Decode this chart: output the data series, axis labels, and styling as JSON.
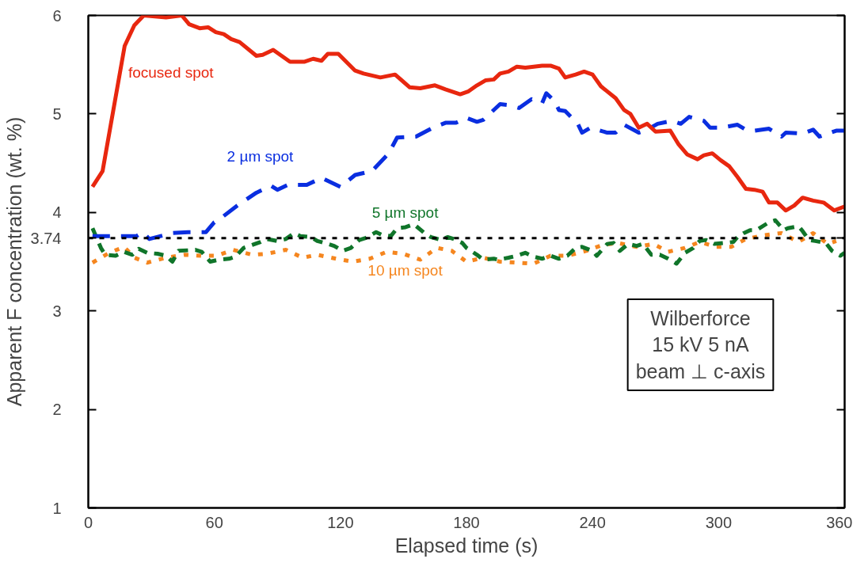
{
  "chart_data": {
    "type": "line",
    "xlabel": "Elapsed time (s)",
    "ylabel": "Apparent F concentration (wt. %)",
    "xlim": [
      0,
      360
    ],
    "ylim": [
      1,
      6
    ],
    "xticks": [
      0,
      60,
      120,
      180,
      240,
      300,
      360
    ],
    "yticks": [
      1,
      2,
      3,
      4,
      5,
      6
    ],
    "grid": false,
    "ref_lines": [
      {
        "axis": "y",
        "value": 3.74,
        "label": "3.74",
        "color": "#000000",
        "line_style": "dotted"
      }
    ],
    "annotations": [
      "Wilberforce\n15 kV 5 nA\nbeam ⊥ c-axis"
    ],
    "series": [
      {
        "name": "focused spot",
        "color": "#e8270f",
        "line_style": "solid",
        "x": [
          2,
          6.8,
          17.3,
          21.9,
          26.4,
          37,
          44.5,
          48,
          53,
          57,
          60.7,
          64.5,
          68,
          72,
          80,
          83,
          88,
          96,
          103,
          107,
          111,
          114,
          119,
          127,
          131,
          139,
          146,
          153,
          158,
          165,
          170,
          177,
          181,
          185,
          189,
          193,
          196,
          200,
          204,
          208,
          212,
          216,
          220,
          224,
          227,
          232,
          236,
          240,
          244,
          251,
          255,
          258,
          262,
          266,
          270,
          277,
          281,
          285,
          290,
          293,
          297,
          301,
          305,
          309,
          313,
          317,
          321,
          324,
          328,
          332,
          336,
          340,
          345,
          350,
          355,
          360
        ],
        "values": [
          4.26,
          4.42,
          5.69,
          5.9,
          6.0,
          5.98,
          6.0,
          5.91,
          5.87,
          5.88,
          5.83,
          5.81,
          5.76,
          5.73,
          5.59,
          5.6,
          5.65,
          5.53,
          5.53,
          5.56,
          5.54,
          5.61,
          5.61,
          5.44,
          5.41,
          5.37,
          5.4,
          5.27,
          5.26,
          5.29,
          5.25,
          5.2,
          5.23,
          5.29,
          5.34,
          5.35,
          5.41,
          5.43,
          5.48,
          5.47,
          5.48,
          5.49,
          5.49,
          5.46,
          5.37,
          5.4,
          5.43,
          5.4,
          5.28,
          5.16,
          5.04,
          5.0,
          4.86,
          4.9,
          4.82,
          4.83,
          4.69,
          4.59,
          4.54,
          4.58,
          4.6,
          4.53,
          4.47,
          4.36,
          4.24,
          4.23,
          4.21,
          4.1,
          4.1,
          4.02,
          4.07,
          4.15,
          4.12,
          4.1,
          4.02,
          4.06
        ]
      },
      {
        "name": "2 µm spot",
        "color": "#0a2ee0",
        "line_style": "dashed",
        "x": [
          2,
          8,
          15,
          23,
          26,
          29,
          40,
          47.5,
          56,
          60,
          63,
          71,
          80,
          87,
          90,
          95,
          104,
          111,
          120,
          127,
          135,
          143,
          147,
          156,
          164,
          170,
          175,
          180,
          185,
          188,
          196,
          200,
          205,
          211,
          216,
          218,
          222,
          224,
          227,
          233,
          235,
          239,
          247,
          251,
          255,
          262,
          266,
          271,
          278,
          282,
          286,
          293,
          296,
          301,
          309,
          313,
          317,
          324,
          330,
          332,
          340,
          345,
          348,
          356,
          360
        ],
        "values": [
          3.76,
          3.76,
          3.76,
          3.76,
          3.8,
          3.73,
          3.79,
          3.8,
          3.8,
          3.9,
          3.94,
          4.07,
          4.2,
          4.27,
          4.23,
          4.28,
          4.28,
          4.35,
          4.26,
          4.38,
          4.42,
          4.6,
          4.76,
          4.77,
          4.86,
          4.91,
          4.91,
          4.96,
          4.92,
          4.94,
          5.1,
          5.09,
          5.06,
          5.15,
          5.11,
          5.21,
          5.13,
          5.04,
          5.03,
          4.9,
          4.81,
          4.86,
          4.81,
          4.81,
          4.89,
          4.81,
          4.84,
          4.9,
          4.93,
          4.9,
          4.97,
          4.93,
          4.86,
          4.86,
          4.89,
          4.84,
          4.83,
          4.85,
          4.77,
          4.81,
          4.8,
          4.84,
          4.77,
          4.83,
          4.83
        ]
      },
      {
        "name": "5 µm spot",
        "color": "#10752a",
        "line_style": "dashed",
        "x": [
          2,
          4,
          6,
          8,
          13,
          17,
          21,
          24,
          28,
          33,
          37,
          40,
          43,
          51,
          54,
          58,
          62,
          67,
          70,
          74,
          78,
          82,
          85,
          90,
          94,
          98,
          101,
          106,
          109,
          114,
          117,
          121,
          125,
          129,
          132,
          137,
          140,
          144,
          147,
          151,
          155,
          160,
          163,
          168,
          171,
          174,
          178,
          180,
          185,
          188,
          193,
          195,
          200,
          204,
          208,
          212,
          216,
          220,
          224,
          228,
          232,
          235,
          240,
          242,
          247,
          250,
          253,
          257,
          261,
          264,
          268,
          272,
          276,
          280,
          284,
          288,
          291,
          294,
          298,
          303,
          307,
          309,
          312,
          315,
          318,
          324,
          327,
          331,
          333,
          338,
          340,
          343,
          346,
          351,
          354,
          358,
          360
        ],
        "values": [
          3.84,
          3.74,
          3.64,
          3.57,
          3.56,
          3.6,
          3.57,
          3.63,
          3.59,
          3.58,
          3.56,
          3.5,
          3.61,
          3.62,
          3.6,
          3.5,
          3.52,
          3.53,
          3.55,
          3.64,
          3.67,
          3.7,
          3.73,
          3.71,
          3.73,
          3.79,
          3.76,
          3.75,
          3.71,
          3.68,
          3.66,
          3.61,
          3.64,
          3.72,
          3.74,
          3.8,
          3.77,
          3.76,
          3.84,
          3.85,
          3.88,
          3.79,
          3.75,
          3.72,
          3.75,
          3.73,
          3.69,
          3.64,
          3.57,
          3.52,
          3.53,
          3.52,
          3.54,
          3.56,
          3.59,
          3.55,
          3.53,
          3.56,
          3.53,
          3.56,
          3.64,
          3.65,
          3.61,
          3.56,
          3.68,
          3.69,
          3.61,
          3.68,
          3.66,
          3.68,
          3.57,
          3.57,
          3.53,
          3.48,
          3.59,
          3.64,
          3.71,
          3.72,
          3.68,
          3.69,
          3.7,
          3.75,
          3.79,
          3.82,
          3.82,
          3.9,
          3.92,
          3.82,
          3.84,
          3.86,
          3.81,
          3.72,
          3.71,
          3.69,
          3.61,
          3.56,
          3.59
        ]
      },
      {
        "name": "10 µm spot",
        "color": "#f5861f",
        "line_style": "dotted",
        "x": [
          2,
          10,
          17,
          22,
          28,
          37,
          46,
          54,
          61,
          69,
          78,
          85,
          94,
          102,
          109,
          118,
          126,
          134,
          142,
          150,
          158,
          166,
          173,
          180,
          188,
          196,
          204,
          212,
          220,
          228,
          237,
          245,
          252,
          261,
          269,
          276,
          284,
          291,
          299,
          306,
          313,
          322,
          330,
          338,
          345,
          352,
          356
        ],
        "values": [
          3.49,
          3.59,
          3.65,
          3.54,
          3.49,
          3.54,
          3.57,
          3.56,
          3.56,
          3.62,
          3.57,
          3.58,
          3.62,
          3.54,
          3.57,
          3.53,
          3.5,
          3.53,
          3.6,
          3.58,
          3.52,
          3.64,
          3.61,
          3.5,
          3.54,
          3.5,
          3.49,
          3.48,
          3.56,
          3.56,
          3.61,
          3.67,
          3.69,
          3.65,
          3.68,
          3.6,
          3.64,
          3.7,
          3.65,
          3.65,
          3.73,
          3.77,
          3.79,
          3.7,
          3.79,
          3.68,
          3.71
        ]
      }
    ]
  }
}
